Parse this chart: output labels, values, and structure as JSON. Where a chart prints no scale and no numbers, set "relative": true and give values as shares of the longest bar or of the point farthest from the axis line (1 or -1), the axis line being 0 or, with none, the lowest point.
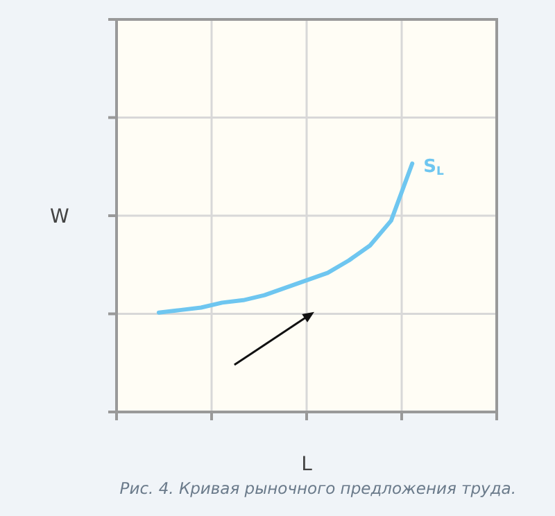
{
  "chart_data": {
    "type": "line",
    "xlabel": "L",
    "ylabel": "W",
    "annotations": [
      "Рис. 4. Кривая рыночного предложения труда."
    ],
    "relative": true,
    "grid": true,
    "marker": "none",
    "line_style": "solid",
    "categories": [
      null,
      null,
      null,
      null,
      null,
      null,
      null,
      null,
      null,
      null,
      null,
      null,
      null,
      null,
      null,
      null,
      null,
      null,
      null
    ],
    "series": [
      {
        "name": "S$_{L}$",
        "color": "#6ec6f0",
        "values": [
          null,
          null,
          0.4,
          0.41,
          0.42,
          0.44,
          0.45,
          0.47,
          0.5,
          0.53,
          0.56,
          0.61,
          0.67,
          0.77,
          1.0,
          null,
          null,
          null,
          null
        ]
      }
    ]
  }
}
